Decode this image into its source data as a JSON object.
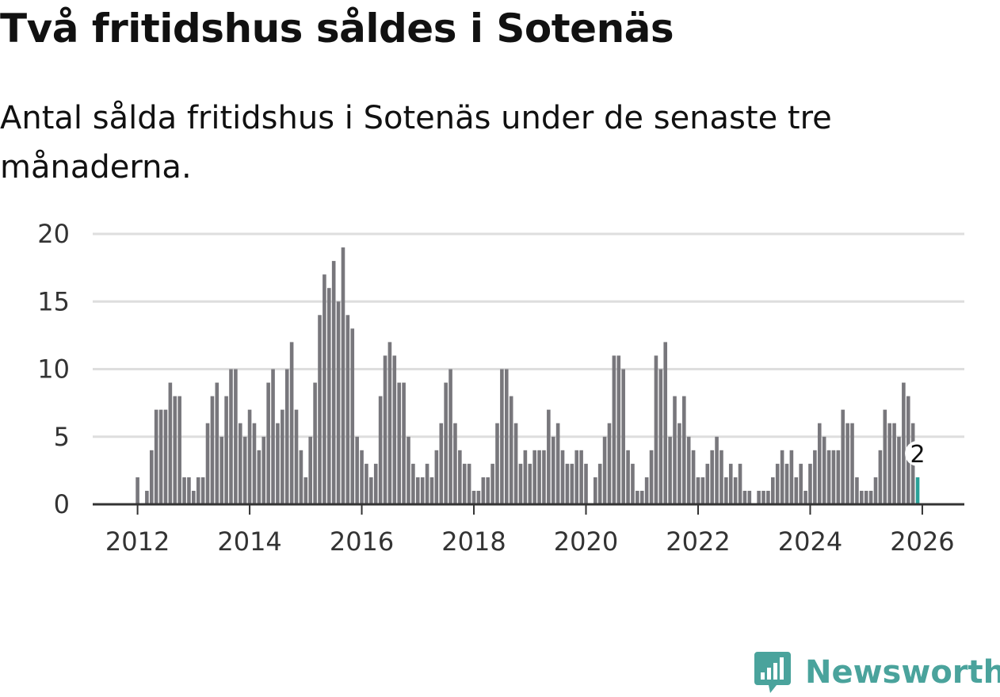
{
  "header": {
    "title": "Två fritidshus såldes i Sotenäs",
    "subtitle": "Antal sålda fritidshus i Sotenäs under de senaste tre månaderna."
  },
  "brand": {
    "name": "Newsworthy",
    "icon": "newsworthy-logo-icon"
  },
  "colors": {
    "bar": "#78777c",
    "highlight": "#2aa198",
    "grid": "#dedede",
    "axis": "#333333"
  },
  "chart_data": {
    "type": "bar",
    "title": "Två fritidshus såldes i Sotenäs",
    "subtitle": "Antal sålda fritidshus i Sotenäs under de senaste tre månaderna.",
    "xlabel": "",
    "ylabel": "",
    "ylim": [
      0,
      20
    ],
    "yticks": [
      0,
      5,
      10,
      15,
      20
    ],
    "xlim": [
      2011.2,
      2026.75
    ],
    "xticks": [
      "2012",
      "2014",
      "2016",
      "2018",
      "2020",
      "2022",
      "2024",
      "2026"
    ],
    "grid": true,
    "start": {
      "year": 2012,
      "month": 1
    },
    "values": [
      2,
      0,
      1,
      4,
      7,
      7,
      7,
      9,
      8,
      8,
      2,
      2,
      1,
      2,
      2,
      6,
      8,
      9,
      5,
      8,
      10,
      10,
      6,
      5,
      7,
      6,
      4,
      5,
      9,
      10,
      6,
      7,
      10,
      12,
      7,
      4,
      2,
      5,
      9,
      14,
      17,
      16,
      18,
      15,
      19,
      14,
      13,
      5,
      4,
      3,
      2,
      3,
      8,
      11,
      12,
      11,
      9,
      9,
      5,
      3,
      2,
      2,
      3,
      2,
      4,
      6,
      9,
      10,
      6,
      4,
      3,
      3,
      1,
      1,
      2,
      2,
      3,
      6,
      10,
      10,
      8,
      6,
      3,
      4,
      3,
      4,
      4,
      4,
      7,
      5,
      6,
      4,
      3,
      3,
      4,
      4,
      3,
      0,
      2,
      3,
      5,
      6,
      11,
      11,
      10,
      4,
      3,
      1,
      1,
      2,
      4,
      11,
      10,
      12,
      5,
      8,
      6,
      8,
      5,
      4,
      2,
      2,
      3,
      4,
      5,
      4,
      2,
      3,
      2,
      3,
      1,
      1,
      0,
      1,
      1,
      1,
      2,
      3,
      4,
      3,
      4,
      2,
      3,
      1,
      3,
      4,
      6,
      5,
      4,
      4,
      4,
      7,
      6,
      6,
      2,
      1,
      1,
      1,
      2,
      4,
      7,
      6,
      6,
      5,
      9,
      8,
      6,
      2
    ],
    "highlight": {
      "index": 167,
      "value": 2,
      "label": "2"
    }
  }
}
